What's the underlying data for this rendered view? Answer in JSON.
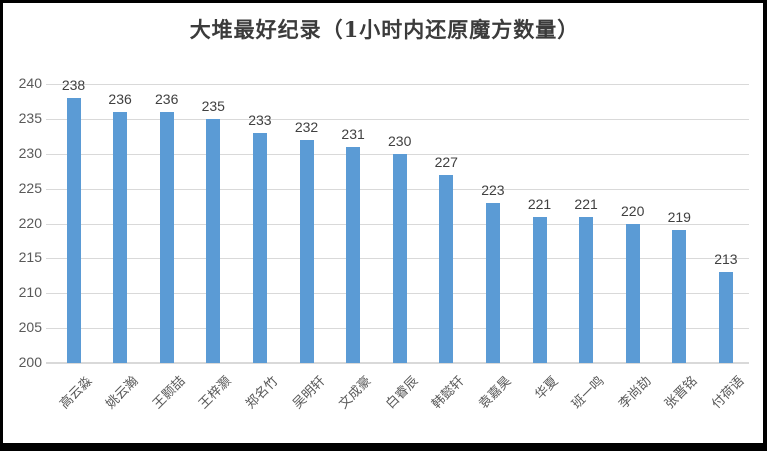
{
  "colors": {
    "bar": "#5b9bd5",
    "gridline": "#d9d9d9",
    "axis_label": "#595959",
    "data_label": "#404040",
    "title": "#3b3b3b",
    "frame_border": "#000000",
    "background": "#ffffff"
  },
  "chart_data": {
    "type": "bar",
    "title": "大堆最好纪录（1小时内还原魔方数量）",
    "categories": [
      "高云淼",
      "姚云瀚",
      "王颢喆",
      "王梓灏",
      "郑名竹",
      "吴明轩",
      "文成豪",
      "白睿辰",
      "韩懿轩",
      "袁嘉昊",
      "华夏",
      "班一鸣",
      "李尚劼",
      "张晋铭",
      "付荷语"
    ],
    "values": [
      238,
      236,
      236,
      235,
      233,
      232,
      231,
      230,
      227,
      223,
      221,
      221,
      220,
      219,
      213
    ],
    "data_labels": [
      238,
      236,
      236,
      235,
      233,
      232,
      231,
      230,
      227,
      223,
      221,
      221,
      220,
      219,
      213
    ],
    "xlabel": "",
    "ylabel": "",
    "ylim": [
      200,
      240
    ],
    "yticks": [
      200,
      205,
      210,
      215,
      220,
      225,
      230,
      235,
      240
    ],
    "grid": true,
    "legend": false,
    "x_label_rotation_deg": 45
  }
}
